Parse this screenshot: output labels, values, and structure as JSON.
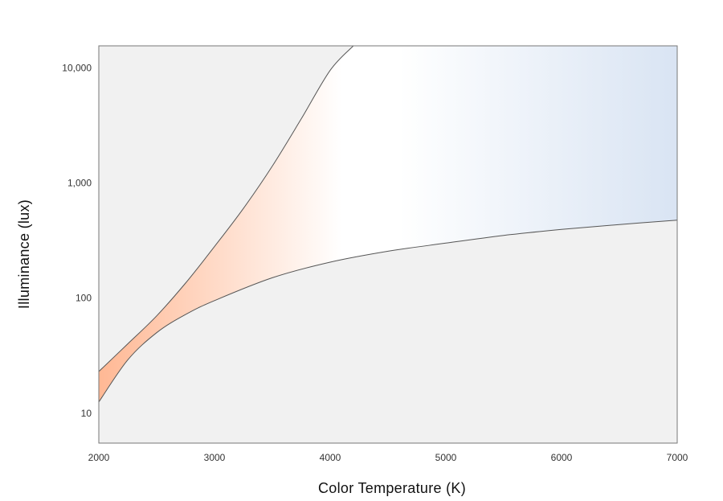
{
  "chart_data": {
    "type": "area",
    "title": "",
    "xlabel": "Color Temperature (K)",
    "ylabel": "Illuminance (lux)",
    "xlim": [
      2000,
      7000
    ],
    "ylim": [
      5.5,
      15500
    ],
    "y_scale": "log",
    "x_ticks": [
      2000,
      3000,
      4000,
      5000,
      6000,
      7000
    ],
    "x_tick_labels": [
      "2000",
      "3000",
      "4000",
      "5000",
      "6000",
      "7000"
    ],
    "y_ticks": [
      10,
      100,
      1000,
      10000
    ],
    "y_tick_labels": [
      "10",
      "100",
      "1,000",
      "10,000"
    ],
    "grid": false,
    "legend": "none",
    "series": [
      {
        "role": "upper boundary",
        "x": [
          2000,
          2250,
          2500,
          2750,
          3000,
          3250,
          3500,
          3750,
          4000,
          4200
        ],
        "y": [
          23,
          40,
          70,
          135,
          280,
          600,
          1400,
          3600,
          9500,
          15500
        ]
      },
      {
        "role": "lower boundary",
        "x": [
          2000,
          2250,
          2500,
          2750,
          3000,
          3500,
          4000,
          4500,
          5000,
          5500,
          6000,
          6500,
          7000
        ],
        "y": [
          12.5,
          29,
          50,
          72,
          95,
          150,
          205,
          255,
          300,
          350,
          395,
          435,
          475
        ]
      }
    ],
    "colors": {
      "outside_region": "#f1f1f1",
      "warm_fill": "#ffb894",
      "neutral_fill": "#ffffff",
      "cool_fill": "#d9e4f3",
      "boundary_line": "#555555",
      "frame": "#777777"
    }
  }
}
